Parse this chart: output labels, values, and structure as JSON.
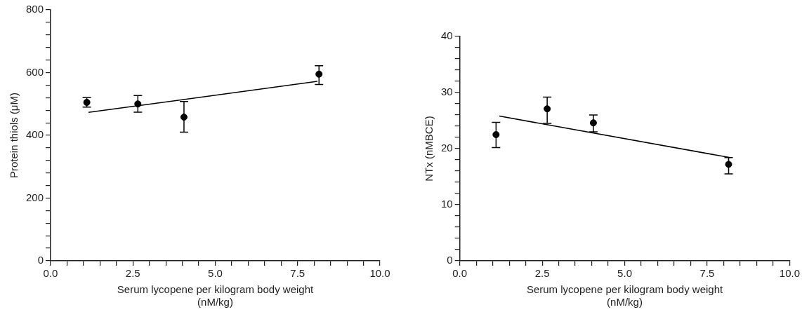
{
  "chart_data": [
    {
      "type": "scatter",
      "xlabel": "Serum lycopene per kilogram body weight (nM/kg)",
      "ylabel": "Protein thiols (μM)",
      "grid": false,
      "legend": false,
      "marker": "circle",
      "xlim": [
        0,
        10
      ],
      "ylim": [
        0,
        800
      ],
      "xticks": [
        {
          "value": 0,
          "label": "0.0"
        },
        {
          "value": 0.5,
          "label": null
        },
        {
          "value": 1,
          "label": null
        },
        {
          "value": 1.5,
          "label": null
        },
        {
          "value": 2,
          "label": null
        },
        {
          "value": 2.5,
          "label": "2.5"
        },
        {
          "value": 3,
          "label": null
        },
        {
          "value": 3.5,
          "label": null
        },
        {
          "value": 4,
          "label": null
        },
        {
          "value": 4.5,
          "label": null
        },
        {
          "value": 5,
          "label": "5.0"
        },
        {
          "value": 5.5,
          "label": null
        },
        {
          "value": 6,
          "label": null
        },
        {
          "value": 6.5,
          "label": null
        },
        {
          "value": 7,
          "label": null
        },
        {
          "value": 7.5,
          "label": "7.5"
        },
        {
          "value": 8,
          "label": null
        },
        {
          "value": 8.5,
          "label": null
        },
        {
          "value": 9,
          "label": null
        },
        {
          "value": 9.5,
          "label": null
        },
        {
          "value": 10,
          "label": "10.0"
        }
      ],
      "yticks": [
        0,
        {
          "value": 40,
          "label": null
        },
        {
          "value": 80,
          "label": null
        },
        {
          "value": 120,
          "label": null
        },
        {
          "value": 160,
          "label": null
        },
        200,
        {
          "value": 240,
          "label": null
        },
        {
          "value": 280,
          "label": null
        },
        {
          "value": 320,
          "label": null
        },
        {
          "value": 360,
          "label": null
        },
        400,
        {
          "value": 440,
          "label": null
        },
        {
          "value": 480,
          "label": null
        },
        {
          "value": 520,
          "label": null
        },
        {
          "value": 560,
          "label": null
        },
        600,
        {
          "value": 640,
          "label": null
        },
        {
          "value": 680,
          "label": null
        },
        {
          "value": 720,
          "label": null
        },
        {
          "value": 760,
          "label": null
        },
        800
      ],
      "series": [
        {
          "type": "scatter",
          "color": "#000000",
          "x": [
            1.1,
            2.65,
            4.05,
            8.15
          ],
          "values": [
            505,
            500,
            458,
            595
          ],
          "errors": [
            [
              490,
              520
            ],
            [
              474,
              527
            ],
            [
              410,
              508
            ],
            [
              562,
              622
            ]
          ]
        },
        {
          "type": "line",
          "color": "#000000",
          "marker": "none",
          "x": [
            1.15,
            8.1
          ],
          "values": [
            473,
            572
          ]
        }
      ]
    },
    {
      "type": "scatter",
      "xlabel": "Serum lycopene per kilogram body weight (nM/kg)",
      "ylabel": "NTx (nMBCE)",
      "grid": false,
      "legend": false,
      "marker": "circle",
      "xlim": [
        0,
        10
      ],
      "ylim": [
        0,
        40
      ],
      "xticks": [
        {
          "value": 0,
          "label": "0.0"
        },
        {
          "value": 0.5,
          "label": null
        },
        {
          "value": 1,
          "label": null
        },
        {
          "value": 1.5,
          "label": null
        },
        {
          "value": 2,
          "label": null
        },
        {
          "value": 2.5,
          "label": "2.5"
        },
        {
          "value": 3,
          "label": null
        },
        {
          "value": 3.5,
          "label": null
        },
        {
          "value": 4,
          "label": null
        },
        {
          "value": 4.5,
          "label": null
        },
        {
          "value": 5,
          "label": "5.0"
        },
        {
          "value": 5.5,
          "label": null
        },
        {
          "value": 6,
          "label": null
        },
        {
          "value": 6.5,
          "label": null
        },
        {
          "value": 7,
          "label": null
        },
        {
          "value": 7.5,
          "label": "7.5"
        },
        {
          "value": 8,
          "label": null
        },
        {
          "value": 8.5,
          "label": null
        },
        {
          "value": 9,
          "label": null
        },
        {
          "value": 9.5,
          "label": null
        },
        {
          "value": 10,
          "label": "10.0"
        }
      ],
      "yticks": [
        0,
        {
          "value": 2,
          "label": null
        },
        {
          "value": 4,
          "label": null
        },
        {
          "value": 6,
          "label": null
        },
        {
          "value": 8,
          "label": null
        },
        10,
        {
          "value": 12,
          "label": null
        },
        {
          "value": 14,
          "label": null
        },
        {
          "value": 16,
          "label": null
        },
        {
          "value": 18,
          "label": null
        },
        20,
        {
          "value": 22,
          "label": null
        },
        {
          "value": 24,
          "label": null
        },
        {
          "value": 26,
          "label": null
        },
        {
          "value": 28,
          "label": null
        },
        30,
        {
          "value": 32,
          "label": null
        },
        {
          "value": 34,
          "label": null
        },
        {
          "value": 36,
          "label": null
        },
        {
          "value": 38,
          "label": null
        },
        40
      ],
      "series": [
        {
          "type": "scatter",
          "color": "#000000",
          "x": [
            1.1,
            2.65,
            4.05,
            8.15
          ],
          "values": [
            22.5,
            27.1,
            24.6,
            17.2
          ],
          "errors": [
            [
              20.2,
              24.7
            ],
            [
              24.5,
              29.2
            ],
            [
              23,
              26
            ],
            [
              15.5,
              18.4
            ]
          ]
        },
        {
          "type": "line",
          "color": "#000000",
          "marker": "none",
          "x": [
            1.2,
            8.2
          ],
          "values": [
            25.8,
            18.4
          ]
        }
      ]
    }
  ]
}
